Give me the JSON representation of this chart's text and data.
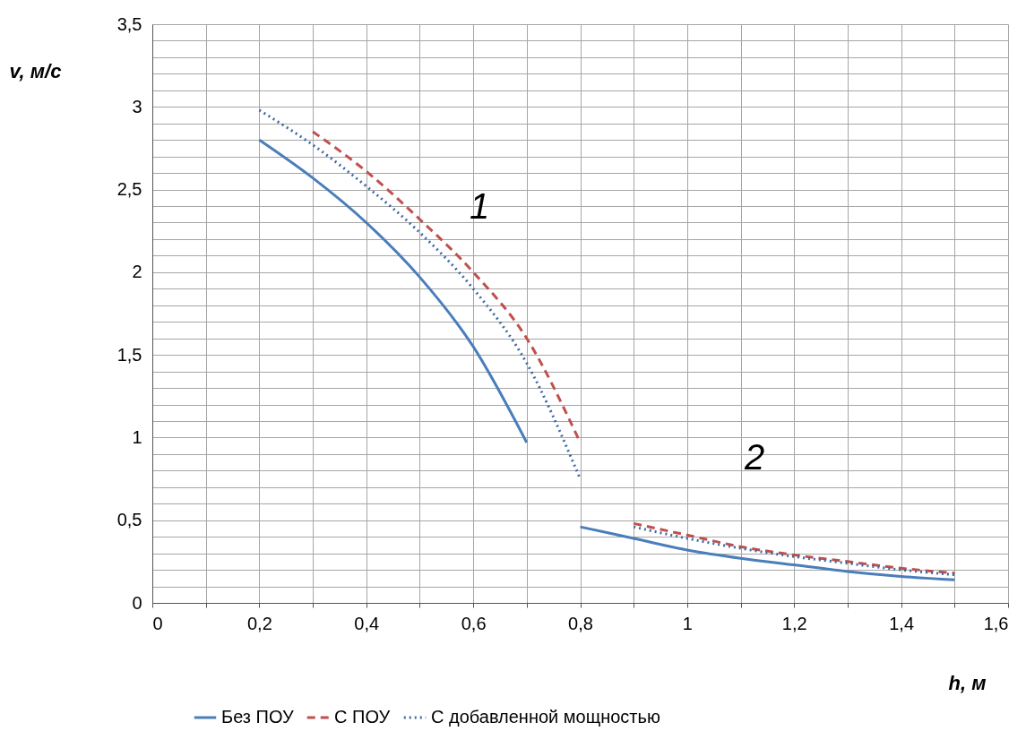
{
  "chart_data": {
    "type": "line",
    "xlabel": "h, м",
    "ylabel": "v, м/с",
    "xlim": [
      0,
      1.6
    ],
    "ylim": [
      0,
      3.5
    ],
    "xticks": [
      0,
      {
        "value": 0.1,
        "label": null
      },
      {
        "value": 0.2,
        "label": "0,2"
      },
      {
        "value": 0.3,
        "label": null
      },
      {
        "value": 0.4,
        "label": "0,4"
      },
      {
        "value": 0.5,
        "label": null
      },
      {
        "value": 0.6,
        "label": "0,6"
      },
      {
        "value": 0.7,
        "label": null
      },
      {
        "value": 0.8,
        "label": "0,8"
      },
      {
        "value": 0.9,
        "label": null
      },
      1,
      {
        "value": 1.1,
        "label": null
      },
      {
        "value": 1.2,
        "label": "1,2"
      },
      {
        "value": 1.3,
        "label": null
      },
      {
        "value": 1.4,
        "label": "1,4"
      },
      {
        "value": 1.5,
        "label": null
      },
      {
        "value": 1.6,
        "label": "1,6"
      }
    ],
    "yticks": [
      0,
      {
        "value": 0.1,
        "label": null
      },
      {
        "value": 0.2,
        "label": null
      },
      {
        "value": 0.3,
        "label": null
      },
      {
        "value": 0.4,
        "label": null
      },
      {
        "value": 0.5,
        "label": "0,5"
      },
      {
        "value": 0.6,
        "label": null
      },
      {
        "value": 0.7,
        "label": null
      },
      {
        "value": 0.8,
        "label": null
      },
      {
        "value": 0.9,
        "label": null
      },
      1,
      {
        "value": 1.1,
        "label": null
      },
      {
        "value": 1.2,
        "label": null
      },
      {
        "value": 1.3,
        "label": null
      },
      {
        "value": 1.4,
        "label": null
      },
      {
        "value": 1.5,
        "label": "1,5"
      },
      {
        "value": 1.6,
        "label": null
      },
      {
        "value": 1.7,
        "label": null
      },
      {
        "value": 1.8,
        "label": null
      },
      {
        "value": 1.9,
        "label": null
      },
      2,
      {
        "value": 2.1,
        "label": null
      },
      {
        "value": 2.2,
        "label": null
      },
      {
        "value": 2.3,
        "label": null
      },
      {
        "value": 2.4,
        "label": null
      },
      {
        "value": 2.5,
        "label": "2,5"
      },
      {
        "value": 2.6,
        "label": null
      },
      {
        "value": 2.7,
        "label": null
      },
      {
        "value": 2.8,
        "label": null
      },
      {
        "value": 2.9,
        "label": null
      },
      3,
      {
        "value": 3.1,
        "label": null
      },
      {
        "value": 3.2,
        "label": null
      },
      {
        "value": 3.3,
        "label": null
      },
      {
        "value": 3.4,
        "label": null
      },
      {
        "value": 3.5,
        "label": "3,5"
      }
    ],
    "grid": true,
    "legend": "bottom",
    "marker": "none",
    "annotations": [
      "1",
      "2"
    ],
    "series": [
      {
        "name": "Без ПОУ",
        "color": "#4a7ebb",
        "line_style": "solid",
        "x": [
          0.2,
          0.3,
          0.4,
          0.5,
          0.6,
          0.7,
          0.75,
          0.8,
          0.9,
          1.0,
          1.1,
          1.2,
          1.3,
          1.4,
          1.5
        ],
        "values": [
          2.8,
          2.57,
          2.3,
          1.97,
          1.55,
          0.97,
          null,
          0.46,
          0.39,
          0.32,
          0.27,
          0.23,
          0.19,
          0.16,
          0.14
        ]
      },
      {
        "name": "С ПОУ",
        "color": "#c0504d",
        "line_style": "dashed",
        "x": [
          0.3,
          0.4,
          0.5,
          0.6,
          0.7,
          0.8,
          0.85,
          0.9,
          1.0,
          1.1,
          1.2,
          1.3,
          1.4,
          1.5
        ],
        "values": [
          2.85,
          2.61,
          2.32,
          2.0,
          1.6,
          0.97,
          null,
          0.48,
          0.41,
          0.34,
          0.29,
          0.25,
          0.21,
          0.18
        ]
      },
      {
        "name": "С добавленной мощностью",
        "color": "#3f68a6",
        "line_style": "dotted",
        "x": [
          0.2,
          0.3,
          0.4,
          0.5,
          0.6,
          0.7,
          0.8,
          0.85,
          0.9,
          1.0,
          1.1,
          1.2,
          1.3,
          1.4,
          1.5
        ],
        "values": [
          2.98,
          2.77,
          2.52,
          2.24,
          1.9,
          1.45,
          0.75,
          null,
          0.46,
          0.39,
          0.33,
          0.28,
          0.24,
          0.2,
          0.17
        ]
      }
    ]
  }
}
